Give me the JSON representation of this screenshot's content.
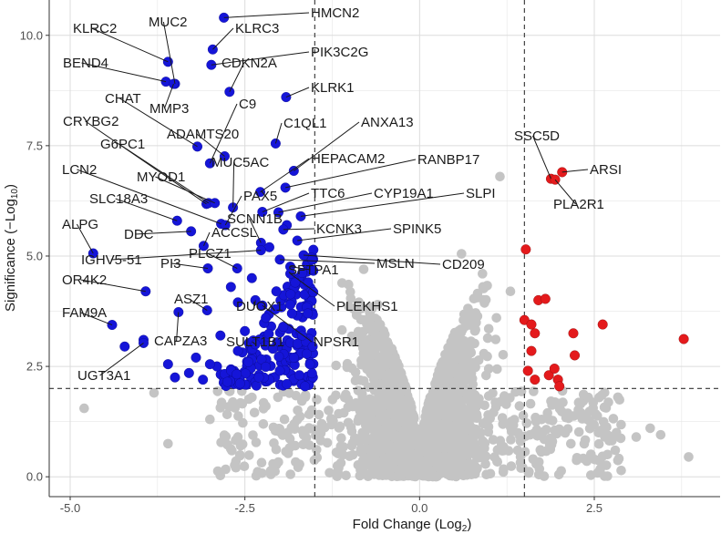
{
  "chart_data": {
    "type": "scatter",
    "title": "",
    "xlabel": "Fold Change (Log2)",
    "xlabel_base": "Fold Change (Log",
    "xlabel_sub": "2",
    "ylabel": "Significance (−Log10)",
    "ylabel_base": "Significance (−Log",
    "ylabel_sub": "10",
    "xlim": [
      -5.3,
      4.3
    ],
    "ylim": [
      -0.45,
      10.8
    ],
    "x_ticks": [
      -5.0,
      -2.5,
      0.0,
      2.5
    ],
    "x_tick_labels": [
      "-5.0",
      "-2.5",
      "0.0",
      "2.5"
    ],
    "y_ticks": [
      0.0,
      2.5,
      5.0,
      7.5,
      10.0
    ],
    "y_tick_labels": [
      "0.0",
      "2.5",
      "5.0",
      "7.5",
      "10.0"
    ],
    "fc_thresholds": [
      -1.5,
      1.5
    ],
    "p_threshold": 2.0,
    "grid": true,
    "colors": {
      "down": "#1515d8",
      "up": "#e41a1c",
      "ns": "#c4c4c4",
      "threshold": "#333333",
      "grid": "#e6e6e6"
    },
    "labeled_points": [
      {
        "gene": "HMCN2",
        "x": -2.8,
        "y": 10.4,
        "group": "down"
      },
      {
        "gene": "KLRC2",
        "x": -3.6,
        "y": 9.4,
        "group": "down"
      },
      {
        "gene": "MUC2",
        "x": -3.5,
        "y": 8.9,
        "group": "down"
      },
      {
        "gene": "KLRC3",
        "x": -2.96,
        "y": 9.68,
        "group": "down"
      },
      {
        "gene": "PIK3C2G",
        "x": -2.98,
        "y": 9.33,
        "group": "down"
      },
      {
        "gene": "CDKN2A",
        "x": -2.72,
        "y": 8.72,
        "group": "down"
      },
      {
        "gene": "BEND4",
        "x": -3.63,
        "y": 8.95,
        "group": "down"
      },
      {
        "gene": "MMP3",
        "x": -3.52,
        "y": 8.9,
        "group": "down"
      },
      {
        "gene": "KLRK1",
        "x": -1.91,
        "y": 8.6,
        "group": "down"
      },
      {
        "gene": "CHAT",
        "x": -3.18,
        "y": 7.48,
        "group": "down"
      },
      {
        "gene": "C9",
        "x": -3.0,
        "y": 7.1,
        "group": "down"
      },
      {
        "gene": "ADAMTS20",
        "x": -2.79,
        "y": 7.26,
        "group": "down"
      },
      {
        "gene": "C1QL1",
        "x": -2.06,
        "y": 7.55,
        "group": "down"
      },
      {
        "gene": "ANXA13",
        "x": -1.8,
        "y": 6.93,
        "group": "down"
      },
      {
        "gene": "CRYBG2",
        "x": -3.05,
        "y": 6.18,
        "group": "down"
      },
      {
        "gene": "G6PC1",
        "x": -3.02,
        "y": 6.2,
        "group": "down"
      },
      {
        "gene": "MUC5AC",
        "x": -2.67,
        "y": 6.1,
        "group": "down"
      },
      {
        "gene": "HEPACAM2",
        "x": -2.28,
        "y": 6.45,
        "group": "down"
      },
      {
        "gene": "RANBP17",
        "x": -1.92,
        "y": 6.55,
        "group": "down"
      },
      {
        "gene": "MYOD1",
        "x": -2.93,
        "y": 6.2,
        "group": "down"
      },
      {
        "gene": "LCN2",
        "x": -2.84,
        "y": 5.73,
        "group": "down"
      },
      {
        "gene": "PAX5",
        "x": -2.78,
        "y": 5.7,
        "group": "down"
      },
      {
        "gene": "TTC6",
        "x": -2.25,
        "y": 6.0,
        "group": "down"
      },
      {
        "gene": "CYP19A1",
        "x": -2.02,
        "y": 5.99,
        "group": "down"
      },
      {
        "gene": "SLPI",
        "x": -1.7,
        "y": 5.9,
        "group": "down"
      },
      {
        "gene": "SLC18A3",
        "x": -3.47,
        "y": 5.8,
        "group": "down"
      },
      {
        "gene": "SCNN1B",
        "x": -2.27,
        "y": 5.3,
        "group": "down"
      },
      {
        "gene": "ALPG",
        "x": -4.67,
        "y": 5.06,
        "group": "down"
      },
      {
        "gene": "DDC",
        "x": -3.27,
        "y": 5.56,
        "group": "down"
      },
      {
        "gene": "ACCSL",
        "x": -3.09,
        "y": 5.23,
        "group": "down"
      },
      {
        "gene": "KCNK3",
        "x": -1.95,
        "y": 5.6,
        "group": "down"
      },
      {
        "gene": "SPINK5",
        "x": -1.75,
        "y": 5.35,
        "group": "down"
      },
      {
        "gene": "IGHV5-51",
        "x": -2.27,
        "y": 5.13,
        "group": "down"
      },
      {
        "gene": "PI3",
        "x": -3.03,
        "y": 4.72,
        "group": "down"
      },
      {
        "gene": "PLCZ1",
        "x": -2.61,
        "y": 4.72,
        "group": "down"
      },
      {
        "gene": "MSLN",
        "x": -2.0,
        "y": 4.92,
        "group": "down"
      },
      {
        "gene": "CD209",
        "x": -1.66,
        "y": 5.02,
        "group": "down"
      },
      {
        "gene": "SFTPA1",
        "x": -1.85,
        "y": 4.76,
        "group": "down"
      },
      {
        "gene": "OR4K2",
        "x": -3.92,
        "y": 4.2,
        "group": "down"
      },
      {
        "gene": "ASZ1",
        "x": -3.04,
        "y": 3.77,
        "group": "down"
      },
      {
        "gene": "PLEKHS1",
        "x": -1.85,
        "y": 4.6,
        "group": "down"
      },
      {
        "gene": "DUOX1",
        "x": -2.35,
        "y": 4.0,
        "group": "down"
      },
      {
        "gene": "FAM9A",
        "x": -4.4,
        "y": 3.44,
        "group": "down"
      },
      {
        "gene": "CAPZA3",
        "x": -3.45,
        "y": 3.73,
        "group": "down"
      },
      {
        "gene": "NPSR1",
        "x": -2.25,
        "y": 3.88,
        "group": "down"
      },
      {
        "gene": "SULT1B1",
        "x": -2.35,
        "y": 3.0,
        "group": "down"
      },
      {
        "gene": "UGT3A1",
        "x": -3.95,
        "y": 3.03,
        "group": "down"
      },
      {
        "gene": "SSC5D",
        "x": 1.88,
        "y": 6.75,
        "group": "up"
      },
      {
        "gene": "ARSI",
        "x": 2.04,
        "y": 6.9,
        "group": "up"
      },
      {
        "gene": "PLA2R1",
        "x": 1.94,
        "y": 6.73,
        "group": "up"
      }
    ],
    "extra_down_points": [
      {
        "x": -4.22,
        "y": 2.95
      },
      {
        "x": -3.95,
        "y": 3.1
      },
      {
        "x": -3.6,
        "y": 2.55
      },
      {
        "x": -3.3,
        "y": 2.35
      },
      {
        "x": -3.2,
        "y": 2.7
      },
      {
        "x": -3.1,
        "y": 2.2
      },
      {
        "x": -2.9,
        "y": 2.5
      },
      {
        "x": -2.75,
        "y": 2.15
      },
      {
        "x": -2.6,
        "y": 2.85
      },
      {
        "x": -2.5,
        "y": 3.3
      },
      {
        "x": -2.45,
        "y": 2.6
      },
      {
        "x": -2.3,
        "y": 2.25
      },
      {
        "x": -2.2,
        "y": 3.6
      },
      {
        "x": -2.1,
        "y": 2.9
      },
      {
        "x": -2.05,
        "y": 4.2
      },
      {
        "x": -2.0,
        "y": 2.4
      },
      {
        "x": -1.95,
        "y": 3.4
      },
      {
        "x": -1.9,
        "y": 2.1
      },
      {
        "x": -1.85,
        "y": 3.9
      },
      {
        "x": -1.8,
        "y": 2.7
      },
      {
        "x": -1.78,
        "y": 4.4
      },
      {
        "x": -1.72,
        "y": 2.3
      },
      {
        "x": -1.68,
        "y": 3.2
      },
      {
        "x": -1.64,
        "y": 2.05
      },
      {
        "x": -1.6,
        "y": 3.7
      },
      {
        "x": -1.57,
        "y": 2.55
      },
      {
        "x": -1.55,
        "y": 4.7
      },
      {
        "x": -1.53,
        "y": 2.95
      },
      {
        "x": -2.6,
        "y": 3.95
      },
      {
        "x": -2.85,
        "y": 3.2
      },
      {
        "x": -3.0,
        "y": 2.55
      },
      {
        "x": -3.5,
        "y": 2.25
      },
      {
        "x": -2.4,
        "y": 4.5
      },
      {
        "x": -2.15,
        "y": 5.2
      },
      {
        "x": -1.9,
        "y": 5.7
      },
      {
        "x": -2.7,
        "y": 4.3
      }
    ],
    "extra_up_points": [
      {
        "x": 1.52,
        "y": 5.15
      },
      {
        "x": 1.5,
        "y": 3.55
      },
      {
        "x": 1.6,
        "y": 3.45
      },
      {
        "x": 1.65,
        "y": 3.25
      },
      {
        "x": 1.7,
        "y": 4.0
      },
      {
        "x": 1.8,
        "y": 4.03
      },
      {
        "x": 1.6,
        "y": 2.85
      },
      {
        "x": 1.55,
        "y": 2.4
      },
      {
        "x": 1.65,
        "y": 2.2
      },
      {
        "x": 1.85,
        "y": 2.3
      },
      {
        "x": 1.93,
        "y": 2.45
      },
      {
        "x": 1.98,
        "y": 2.2
      },
      {
        "x": 2.0,
        "y": 2.05
      },
      {
        "x": 2.2,
        "y": 3.25
      },
      {
        "x": 2.22,
        "y": 2.75
      },
      {
        "x": 2.62,
        "y": 3.45
      },
      {
        "x": 3.78,
        "y": 3.12
      }
    ],
    "extra_ns_points": [
      {
        "x": -4.8,
        "y": 1.55
      },
      {
        "x": -3.6,
        "y": 0.75
      },
      {
        "x": -3.8,
        "y": 1.9
      },
      {
        "x": -3.0,
        "y": 1.3
      },
      {
        "x": -2.6,
        "y": 0.9
      },
      {
        "x": -2.2,
        "y": 1.6
      },
      {
        "x": 1.9,
        "y": 0.8
      },
      {
        "x": 2.4,
        "y": 1.3
      },
      {
        "x": 2.8,
        "y": 0.6
      },
      {
        "x": 3.1,
        "y": 0.9
      },
      {
        "x": 3.3,
        "y": 1.1
      },
      {
        "x": 3.45,
        "y": 0.95
      },
      {
        "x": 3.85,
        "y": 0.45
      },
      {
        "x": 0.6,
        "y": 5.05
      },
      {
        "x": 1.15,
        "y": 6.8
      },
      {
        "x": 0.9,
        "y": 4.6
      },
      {
        "x": 1.3,
        "y": 4.2
      },
      {
        "x": -0.8,
        "y": 4.7
      },
      {
        "x": -0.6,
        "y": 3.9
      },
      {
        "x": 1.1,
        "y": 3.6
      }
    ]
  }
}
